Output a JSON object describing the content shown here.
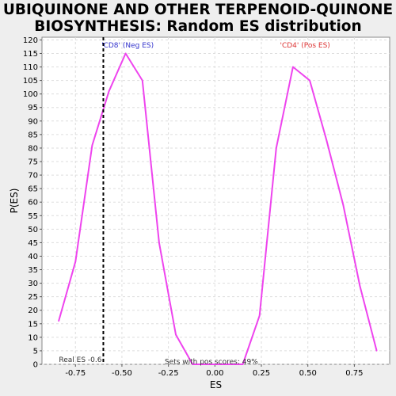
{
  "title_lines": [
    "UBIQUINONE AND OTHER TERPENOID-QUINONE",
    "BIOSYNTHESIS: Random ES distribution"
  ],
  "chart_data": {
    "type": "line",
    "title": "UBIQUINONE AND OTHER TERPENOID-QUINONE BIOSYNTHESIS: Random ES distribution",
    "xlabel": "ES",
    "ylabel": "P(ES)",
    "xlim": [
      -0.93,
      0.94
    ],
    "ylim": [
      0,
      121
    ],
    "x_ticks": [
      -0.75,
      -0.5,
      -0.25,
      0.0,
      0.25,
      0.5,
      0.75
    ],
    "x_tick_labels": [
      "-0.75",
      "-0.50",
      "-0.25",
      "0.00",
      "0.25",
      "0.50",
      "0.75"
    ],
    "y_ticks": [
      0,
      5,
      10,
      15,
      20,
      25,
      30,
      35,
      40,
      45,
      50,
      55,
      60,
      65,
      70,
      75,
      80,
      85,
      90,
      95,
      100,
      105,
      110,
      115,
      120
    ],
    "grid": true,
    "series": [
      {
        "color": "#ee44ee",
        "x": [
          -0.84,
          -0.75,
          -0.66,
          -0.57,
          -0.48,
          -0.39,
          -0.3,
          -0.21,
          -0.12,
          0.15,
          0.24,
          0.33,
          0.42,
          0.51,
          0.6,
          0.69,
          0.78,
          0.87
        ],
        "y": [
          16,
          38,
          81,
          101,
          115,
          105,
          45,
          11,
          0,
          0,
          18,
          80,
          110,
          105,
          83,
          59,
          29,
          5
        ]
      }
    ],
    "vline": {
      "x": -0.6,
      "color": "#000000",
      "label": "Real ES -0.6"
    },
    "annotations": [
      {
        "text": "'CD8' (Neg ES)",
        "color": "#3333cc",
        "x": -0.61,
        "y": 118
      },
      {
        "text": "'CD4' (Pos ES)",
        "color": "#dd3333",
        "x": 0.35,
        "y": 118
      },
      {
        "text": "Sets with pos scores: 49%",
        "color": "#333333",
        "x": -0.27,
        "y": 1
      }
    ]
  }
}
